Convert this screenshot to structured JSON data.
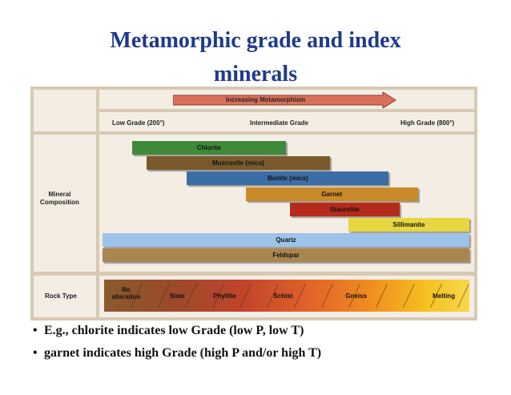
{
  "title": {
    "line1": "Metamorphic grade and index",
    "line2": "minerals"
  },
  "diagram": {
    "arrow_label": "Increasing Metamorphism",
    "grade_low": "Low Grade (200°)",
    "grade_mid": "Intermediate Grade",
    "grade_high": "High Grade (800°)",
    "mineral_heading": "Mineral\nComposition",
    "rock_heading": "Rock Type",
    "minerals": [
      {
        "name": "Chlorite",
        "start": 0.08,
        "end": 0.5,
        "color": "#3f8a3a"
      },
      {
        "name": "Muscovite (mica)",
        "start": 0.12,
        "end": 0.62,
        "color": "#7a5a2c"
      },
      {
        "name": "Biotite (mica)",
        "start": 0.23,
        "end": 0.78,
        "color": "#3b6ea6"
      },
      {
        "name": "Garnet",
        "start": 0.39,
        "end": 0.86,
        "color": "#c98a2a"
      },
      {
        "name": "Staurolite",
        "start": 0.51,
        "end": 0.81,
        "color": "#b52a1a"
      },
      {
        "name": "Sillimanite",
        "start": 0.67,
        "end": 1.0,
        "color": "#e8d640"
      },
      {
        "name": "Quartz",
        "start": 0.0,
        "end": 1.0,
        "color": "#9ec3e8"
      },
      {
        "name": "Feldspar",
        "start": 0.0,
        "end": 1.0,
        "color": "#a98550"
      }
    ],
    "rock_types": [
      {
        "name": "No\nalteration"
      },
      {
        "name": "Slate"
      },
      {
        "name": "Phyllite"
      },
      {
        "name": "Schist"
      },
      {
        "name": "Gneiss"
      },
      {
        "name": "Melting"
      }
    ]
  },
  "bullets": [
    "E.g., chlorite indicates low Grade (low P, low T)",
    "garnet indicates high Grade (high P and/or high T)"
  ],
  "colors": {
    "title": "#1f3a8c",
    "arrow": "#d9705a",
    "frame": "#d8c9b3",
    "panel": "#f3ede4"
  }
}
